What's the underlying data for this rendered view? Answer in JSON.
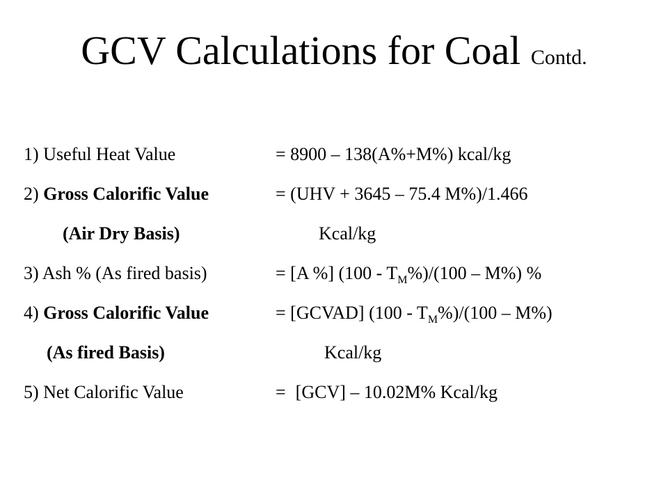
{
  "slide": {
    "title": "GCV Calculations for Coal",
    "title_suffix": "Contd.",
    "rows": [
      {
        "left_num": "1) ",
        "left_plain": "Useful Heat Value",
        "eq": "= 8900 – 138(A%+M%) kcal/kg"
      },
      {
        "left_num": "2) ",
        "left_bold": "Gross Calorific Value",
        "eq": "= (UHV + 3645 – 75.4 M%)/1.466"
      },
      {
        "left_bold": "(Air Dry Basis)",
        "eq": "Kcal/kg"
      },
      {
        "left_plain": "3) Ash % (As fired basis)",
        "eq_pre": "= [A %] (100 - T",
        "eq_sub": "M",
        "eq_post": "%)/(100 – M%) %"
      },
      {
        "left_num": "4) ",
        "left_bold": "Gross Calorific Value",
        "eq_pre": "= [GCVAD] (100 - T",
        "eq_sub": "M",
        "eq_post": "%)/(100 – M%)"
      },
      {
        "left_bold": "(As fired Basis)",
        "eq": "Kcal/kg"
      },
      {
        "left_plain": "5) Net Calorific Value",
        "eq_eq": "=",
        "eq": "[GCV] – 10.02M% Kcal/kg"
      }
    ]
  }
}
